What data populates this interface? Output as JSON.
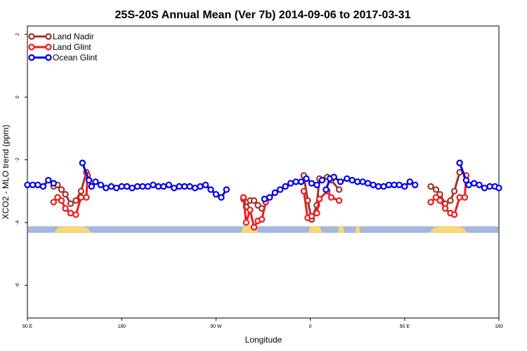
{
  "chart_data": {
    "type": "line",
    "title": "25S-20S Annual Mean (Ver 7b)   2014-09-06 to 2017-03-31",
    "xlabel": "Longitude",
    "ylabel": "XCO2 - MLO trend (ppm)",
    "xlim": [
      90,
      450
    ],
    "ylim": [
      -7,
      2.2
    ],
    "x_ticks": [
      {
        "value": 90,
        "label": "90 E"
      },
      {
        "value": 162,
        "label": "180"
      },
      {
        "value": 234,
        "label": "90 W"
      },
      {
        "value": 306,
        "label": "0"
      },
      {
        "value": 378,
        "label": "90 E"
      },
      {
        "value": 450,
        "label": "180"
      }
    ],
    "y_ticks": [
      {
        "value": 2,
        "label": "2"
      },
      {
        "value": 0,
        "label": "0"
      },
      {
        "value": -2,
        "label": "-2"
      },
      {
        "value": -4,
        "label": "-4"
      },
      {
        "value": -6,
        "label": "-6"
      }
    ],
    "land_mask": {
      "y_range": [
        -4.33,
        -4.12
      ],
      "ocean_color": "#a5b8db",
      "land_color": "#f7d878",
      "land_segments": [
        [
          110,
          139
        ],
        [
          253,
          266
        ],
        [
          304.5,
          315
        ],
        [
          327,
          332
        ],
        [
          340.5,
          344
        ],
        [
          397,
          426
        ]
      ]
    },
    "legend_position": "top-left",
    "series": [
      {
        "name": "Land Nadir",
        "color": "#a0342e",
        "segments": [
          [
            [
              110,
              -2.85
            ],
            [
              113,
              -2.8
            ],
            [
              116,
              -2.95
            ],
            [
              119,
              -3.1
            ],
            [
              123,
              -3.4
            ],
            [
              127,
              -3.3
            ],
            [
              131,
              -3.0
            ],
            [
              135,
              -2.4
            ]
          ],
          [
            [
              255,
              -3.25
            ],
            [
              257,
              -3.5
            ],
            [
              260,
              -3.3
            ],
            [
              263,
              -3.3
            ],
            [
              266,
              -3.45
            ],
            [
              269,
              -3.55
            ]
          ],
          [
            [
              301,
              -2.5
            ],
            [
              304,
              -3.3
            ],
            [
              307,
              -3.9
            ],
            [
              311,
              -3.45
            ],
            [
              313,
              -2.6
            ],
            [
              319,
              -2.55
            ],
            [
              322,
              -2.65
            ],
            [
              328,
              -2.95
            ]
          ],
          [
            [
              398,
              -2.85
            ],
            [
              402,
              -2.95
            ],
            [
              405,
              -3.1
            ],
            [
              409,
              -3.4
            ],
            [
              413,
              -3.3
            ],
            [
              416,
              -3.0
            ],
            [
              420,
              -2.4
            ]
          ]
        ]
      },
      {
        "name": "Land Glint",
        "color": "#ee1c1c",
        "segments": [
          [
            [
              110,
              -3.35
            ],
            [
              113,
              -3.2
            ],
            [
              116,
              -3.3
            ],
            [
              119,
              -3.55
            ],
            [
              123,
              -3.7
            ],
            [
              127,
              -3.75
            ],
            [
              131,
              -3.2
            ],
            [
              135,
              -3.2
            ],
            [
              136,
              -2.5
            ]
          ],
          [
            [
              255,
              -3.2
            ],
            [
              257,
              -4.0
            ],
            [
              260,
              -3.6
            ],
            [
              263,
              -4.15
            ],
            [
              266,
              -3.95
            ],
            [
              269,
              -3.9
            ],
            [
              272,
              -3.35
            ]
          ],
          [
            [
              301,
              -3.0
            ],
            [
              304,
              -3.85
            ],
            [
              307,
              -3.8
            ],
            [
              311,
              -3.7
            ],
            [
              313,
              -3.25
            ],
            [
              319,
              -3.0
            ],
            [
              322,
              -3.2
            ],
            [
              328,
              -3.3
            ]
          ],
          [
            [
              398,
              -3.35
            ],
            [
              402,
              -3.2
            ],
            [
              405,
              -3.3
            ],
            [
              409,
              -3.55
            ],
            [
              413,
              -3.7
            ],
            [
              416,
              -3.75
            ],
            [
              420,
              -3.2
            ],
            [
              424,
              -3.2
            ],
            [
              425,
              -2.5
            ]
          ]
        ]
      },
      {
        "name": "Ocean Glint",
        "color": "#0000ee",
        "segments": [
          [
            [
              90,
              -2.8
            ],
            [
              94,
              -2.8
            ],
            [
              98,
              -2.8
            ],
            [
              102,
              -2.85
            ],
            [
              106,
              -2.65
            ],
            [
              110,
              -2.75
            ]
          ],
          [
            [
              132,
              -2.1
            ],
            [
              137,
              -2.65
            ],
            [
              139,
              -2.85
            ],
            [
              142,
              -2.7
            ],
            [
              146,
              -2.8
            ],
            [
              150,
              -2.9
            ],
            [
              154,
              -2.85
            ],
            [
              158,
              -2.9
            ],
            [
              162,
              -2.85
            ],
            [
              166,
              -2.85
            ],
            [
              170,
              -2.9
            ],
            [
              174,
              -2.85
            ],
            [
              178,
              -2.85
            ],
            [
              182,
              -2.85
            ],
            [
              186,
              -2.8
            ],
            [
              190,
              -2.85
            ],
            [
              194,
              -2.85
            ],
            [
              198,
              -2.8
            ],
            [
              202,
              -2.9
            ],
            [
              206,
              -2.85
            ],
            [
              210,
              -2.85
            ],
            [
              214,
              -2.85
            ],
            [
              218,
              -2.9
            ],
            [
              222,
              -2.85
            ],
            [
              226,
              -2.8
            ],
            [
              230,
              -2.95
            ],
            [
              234,
              -3.1
            ],
            [
              238,
              -3.2
            ],
            [
              242,
              -2.95
            ]
          ],
          [
            [
              271,
              -3.25
            ],
            [
              275,
              -3.2
            ],
            [
              279,
              -3.05
            ],
            [
              283,
              -2.95
            ],
            [
              287,
              -2.85
            ],
            [
              291,
              -2.75
            ],
            [
              295,
              -2.7
            ],
            [
              299,
              -2.7
            ],
            [
              303,
              -2.6
            ],
            [
              307,
              -2.75
            ],
            [
              311,
              -2.8
            ],
            [
              315,
              -2.65
            ]
          ],
          [
            [
              318,
              -2.95
            ],
            [
              321,
              -2.6
            ],
            [
              324,
              -2.55
            ],
            [
              329,
              -2.7
            ],
            [
              334,
              -2.6
            ],
            [
              338,
              -2.65
            ],
            [
              342,
              -2.7
            ],
            [
              346,
              -2.7
            ],
            [
              350,
              -2.75
            ],
            [
              354,
              -2.8
            ],
            [
              358,
              -2.85
            ],
            [
              362,
              -2.85
            ],
            [
              366,
              -2.8
            ],
            [
              370,
              -2.8
            ],
            [
              374,
              -2.8
            ],
            [
              378,
              -2.85
            ],
            [
              382,
              -2.7
            ],
            [
              386,
              -2.8
            ]
          ],
          [
            [
              420,
              -2.1
            ],
            [
              425,
              -2.65
            ],
            [
              427,
              -2.8
            ],
            [
              431,
              -2.75
            ],
            [
              435,
              -2.8
            ],
            [
              439,
              -2.9
            ],
            [
              443,
              -2.85
            ],
            [
              447,
              -2.85
            ],
            [
              450,
              -2.9
            ]
          ]
        ]
      }
    ]
  }
}
